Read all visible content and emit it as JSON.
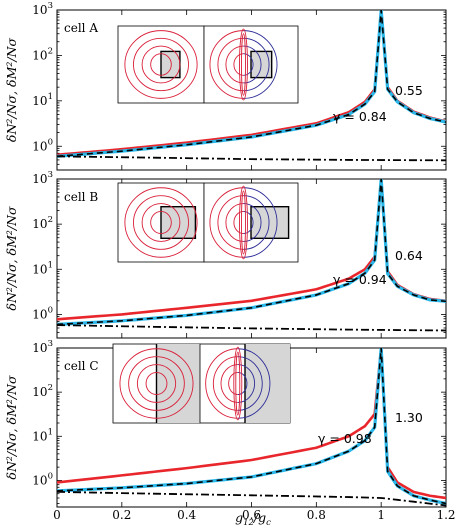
{
  "figure": {
    "xlabel": "g12/gc",
    "ylabel": "δN²/Nσ,  δM²/Nσ",
    "x_ticks": [
      "0",
      "0.2",
      "0.4",
      "0.6",
      "0.8",
      "1",
      "1.2"
    ],
    "y_tick_labels": [
      {
        "base": "10",
        "exp": "0"
      },
      {
        "base": "10",
        "exp": "1"
      },
      {
        "base": "10",
        "exp": "2"
      },
      {
        "base": "10",
        "exp": "3"
      }
    ]
  },
  "colors": {
    "red_curve": "#e8262c",
    "cyan_curve": "#29b6e8",
    "black_dashed": "#000000",
    "inset_red": "#d9203a",
    "inset_blue": "#2e2e98",
    "shade": "#d6d6d6"
  },
  "chart_data": [
    {
      "type": "line",
      "cell_label": "cell A",
      "gamma_label": "γ = 0.84",
      "end_label": "0.55",
      "x_range": [
        0,
        1.2
      ],
      "y_range": [
        0.3,
        1000
      ],
      "y_scale": "log",
      "inset": {
        "shade": "box-small"
      },
      "series": [
        {
          "style": "red solid",
          "x": [
            0,
            0.2,
            0.4,
            0.6,
            0.8,
            0.9,
            0.95,
            0.98,
            1.0,
            1.02,
            1.05,
            1.1,
            1.15,
            1.2
          ],
          "y": [
            0.65,
            0.86,
            1.2,
            1.78,
            3.2,
            5.6,
            9.5,
            18,
            1000,
            20,
            10,
            5.8,
            4.3,
            3.5
          ]
        },
        {
          "style": "cyan solid + black dashed",
          "x": [
            0,
            0.2,
            0.4,
            0.6,
            0.8,
            0.9,
            0.95,
            0.98,
            1.0,
            1.02,
            1.05,
            1.1,
            1.15,
            1.2
          ],
          "y": [
            0.6,
            0.78,
            1.08,
            1.6,
            2.9,
            5.0,
            8.5,
            16,
            1000,
            18,
            9.5,
            5.5,
            4.1,
            3.4
          ]
        },
        {
          "style": "black dash-dot",
          "x": [
            0,
            0.3,
            0.6,
            0.9,
            1.2
          ],
          "y": [
            0.6,
            0.56,
            0.52,
            0.5,
            0.49
          ]
        }
      ]
    },
    {
      "type": "line",
      "cell_label": "cell B",
      "gamma_label": "γ = 0.94",
      "end_label": "0.64",
      "x_range": [
        0,
        1.2
      ],
      "y_range": [
        0.3,
        1000
      ],
      "y_scale": "log",
      "inset": {
        "shade": "box-large"
      },
      "series": [
        {
          "style": "red solid",
          "x": [
            0,
            0.2,
            0.4,
            0.6,
            0.8,
            0.9,
            0.95,
            0.98,
            1.0,
            1.02,
            1.05,
            1.1,
            1.15,
            1.2
          ],
          "y": [
            0.78,
            1.0,
            1.4,
            2.0,
            3.6,
            6.2,
            10,
            19,
            1000,
            9,
            4.5,
            2.8,
            2.2,
            2.0
          ]
        },
        {
          "style": "cyan solid + black dashed",
          "x": [
            0,
            0.2,
            0.4,
            0.6,
            0.8,
            0.9,
            0.95,
            0.98,
            1.0,
            1.02,
            1.05,
            1.1,
            1.15,
            1.2
          ],
          "y": [
            0.6,
            0.72,
            0.95,
            1.4,
            2.7,
            4.8,
            8.2,
            16,
            1000,
            8,
            4.2,
            2.7,
            2.1,
            1.95
          ]
        },
        {
          "style": "black dash-dot",
          "x": [
            0,
            0.3,
            0.6,
            0.9,
            1.2
          ],
          "y": [
            0.58,
            0.53,
            0.49,
            0.46,
            0.44
          ]
        }
      ]
    },
    {
      "type": "line",
      "cell_label": "cell C",
      "gamma_label": "γ = 0.98",
      "end_label": "1.30",
      "x_range": [
        0,
        1.2
      ],
      "y_range": [
        0.25,
        1000
      ],
      "y_scale": "log",
      "inset": {
        "shade": "half-plane"
      },
      "series": [
        {
          "style": "red solid",
          "x": [
            0,
            0.2,
            0.4,
            0.6,
            0.8,
            0.9,
            0.95,
            0.98,
            1.0,
            1.02,
            1.05,
            1.1,
            1.15,
            1.2
          ],
          "y": [
            0.9,
            1.3,
            1.9,
            2.9,
            5.5,
            10,
            17,
            32,
            1000,
            2.0,
            0.9,
            0.55,
            0.45,
            0.4
          ]
        },
        {
          "style": "cyan solid + black dashed",
          "x": [
            0,
            0.2,
            0.4,
            0.6,
            0.8,
            0.9,
            0.95,
            0.98,
            1.0,
            1.02,
            1.05,
            1.1,
            1.15,
            1.2
          ],
          "y": [
            0.58,
            0.68,
            0.85,
            1.2,
            2.4,
            4.6,
            8.0,
            16,
            1000,
            1.6,
            0.75,
            0.45,
            0.36,
            0.3
          ]
        },
        {
          "style": "black dash-dot",
          "x": [
            0,
            0.3,
            0.6,
            0.9,
            1.0,
            1.1,
            1.2
          ],
          "y": [
            0.55,
            0.5,
            0.46,
            0.42,
            0.4,
            0.33,
            0.27
          ]
        }
      ]
    }
  ]
}
